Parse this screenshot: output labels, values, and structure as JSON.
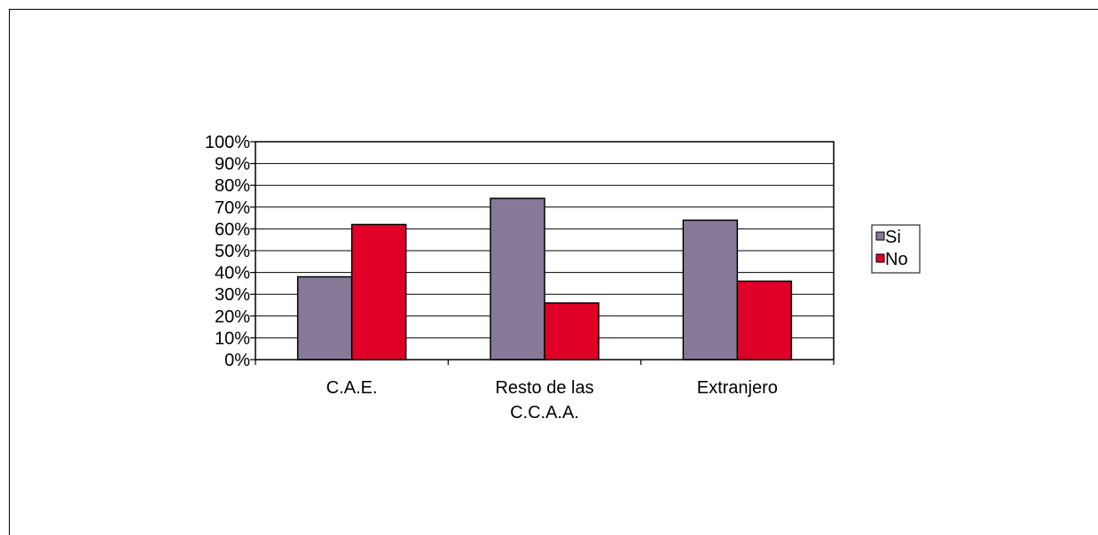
{
  "chart_data": {
    "type": "bar",
    "categories": [
      [
        "C.A.E."
      ],
      [
        "Resto de las",
        "C.C.A.A."
      ],
      [
        "Extranjero"
      ]
    ],
    "series": [
      {
        "name": "Si",
        "values": [
          38,
          74,
          64
        ],
        "color": "#877A98"
      },
      {
        "name": "No",
        "values": [
          62,
          26,
          36
        ],
        "color": "#E00027"
      }
    ],
    "ylim": [
      0,
      100
    ],
    "yticks": [
      "0%",
      "10%",
      "20%",
      "30%",
      "40%",
      "50%",
      "60%",
      "70%",
      "80%",
      "90%",
      "100%"
    ],
    "grid": true,
    "legend": "right"
  }
}
